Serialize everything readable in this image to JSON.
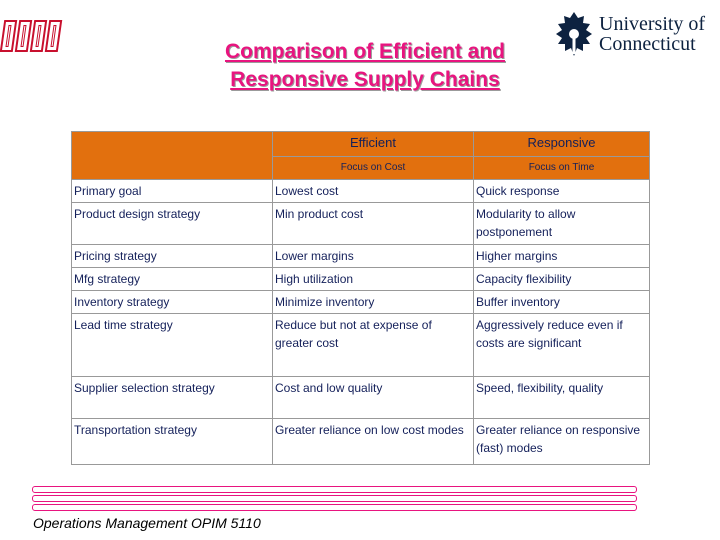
{
  "slide": {
    "title_line1": "Comparison of Efficient and",
    "title_line2": "Responsive Supply Chains",
    "footer": "Operations Management OPIM 5110",
    "accent_color": "#e8147f",
    "table_header_color": "#e2700e"
  },
  "logo": {
    "line1": "University of",
    "line2": "Connecticut",
    "icon": "oak-leaf-icon"
  },
  "table": {
    "headers": [
      "Efficient",
      "Responsive"
    ],
    "subheaders": [
      "Focus on Cost",
      "Focus on Time"
    ],
    "rows": [
      [
        "Primary goal",
        "Lowest cost",
        "Quick response"
      ],
      [
        "Product design strategy",
        "Min product cost",
        "Modularity to allow postponement"
      ],
      [
        "Pricing strategy",
        "Lower margins",
        "Higher margins"
      ],
      [
        "Mfg strategy",
        "High utilization",
        "Capacity flexibility"
      ],
      [
        "Inventory strategy",
        "Minimize inventory",
        "Buffer inventory"
      ],
      [
        "Lead time strategy",
        "Reduce but not at expense of greater cost",
        "Aggressively reduce even if costs are significant"
      ],
      [
        "Supplier selection strategy",
        "Cost and low quality",
        "Speed, flexibility, quality"
      ],
      [
        "Transportation strategy",
        "Greater reliance on low cost modes",
        "Greater reliance on responsive (fast) modes"
      ]
    ]
  }
}
